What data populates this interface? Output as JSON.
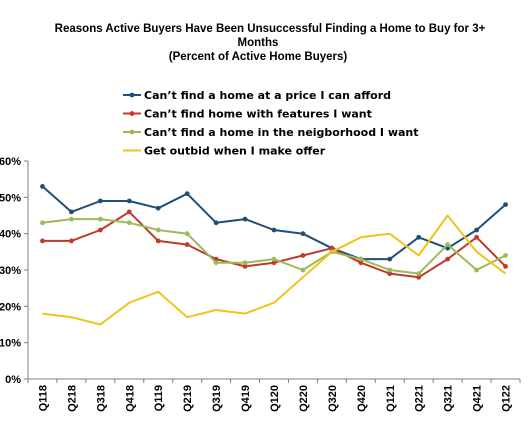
{
  "chart_data": {
    "type": "line",
    "title_lines": [
      "Reasons Active Buyers Have Been Unsuccessful Finding a Home to Buy for 3+",
      "Months",
      "(Percent of Active Home Buyers)"
    ],
    "categories": [
      "Q118",
      "Q218",
      "Q318",
      "Q418",
      "Q119",
      "Q219",
      "Q319",
      "Q419",
      "Q120",
      "Q220",
      "Q320",
      "Q420",
      "Q121",
      "Q221",
      "Q321",
      "Q421",
      "Q122"
    ],
    "ylim": [
      0,
      60
    ],
    "yticks": [
      0,
      10,
      20,
      30,
      40,
      50,
      60
    ],
    "ytick_labels": [
      "0%",
      "10%",
      "20%",
      "30%",
      "40%",
      "50%",
      "60%"
    ],
    "grid": false,
    "legend_position": "top-left",
    "series": [
      {
        "name": "Can’t find a home at a price I can afford",
        "color": "#1f4e79",
        "marker": "circle",
        "values": [
          53,
          46,
          49,
          49,
          47,
          51,
          43,
          44,
          41,
          40,
          36,
          33,
          33,
          39,
          36,
          41,
          48
        ]
      },
      {
        "name": "Can’t find home with features I want",
        "color": "#c0392b",
        "marker": "circle",
        "values": [
          38,
          38,
          41,
          46,
          38,
          37,
          33,
          31,
          32,
          34,
          36,
          32,
          29,
          28,
          33,
          39,
          31
        ]
      },
      {
        "name": "Can’t find a home in the neigborhood I want",
        "color": "#9bbb59",
        "marker": "circle",
        "values": [
          43,
          44,
          44,
          43,
          41,
          40,
          32,
          32,
          33,
          30,
          35,
          33,
          30,
          29,
          37,
          30,
          34
        ]
      },
      {
        "name": "Get outbid when I make offer",
        "color": "#f0c419",
        "marker": "none",
        "values": [
          18,
          17,
          15,
          21,
          24,
          17,
          19,
          18,
          21,
          28,
          35,
          39,
          40,
          34,
          45,
          35,
          29
        ]
      }
    ]
  }
}
